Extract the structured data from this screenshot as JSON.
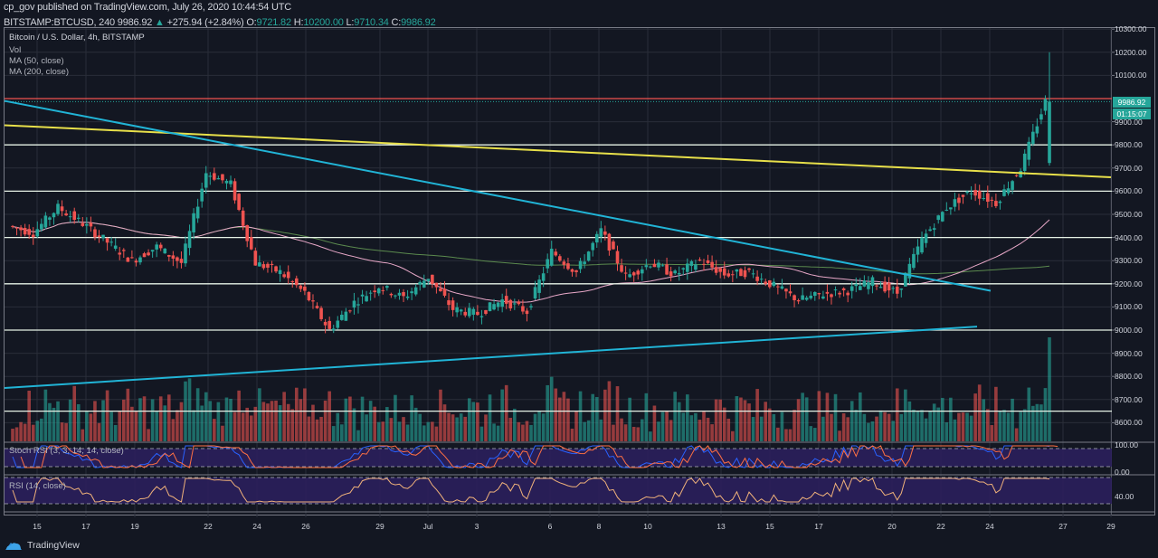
{
  "header": {
    "publisher": "cp_gov published on TradingView.com, July 26, 2020 10:44:54 UTC",
    "symbol": "BITSTAMP:BTCUSD, 240",
    "last": "9986.92",
    "change": "+275.94 (+2.84%)",
    "open_label": "O:",
    "open": "9721.82",
    "high_label": "H:",
    "high": "10200.00",
    "low_label": "L:",
    "low": "9710.34",
    "close_label": "C:",
    "close": "9986.92"
  },
  "legend": {
    "title": "Bitcoin / U.S. Dollar, 4h, BITSTAMP",
    "vol": "Vol",
    "ma50": "MA (50, close)",
    "ma200": "MA (200, close)",
    "stoch": "Stoch RSI (3, 3, 14, 14, close)",
    "rsi": "RSI (14, close)"
  },
  "price_tag": {
    "value": "9986.92",
    "countdown": "01:15:07"
  },
  "price_axis": [
    "10300.00",
    "10200.00",
    "10100.00",
    "9900.00",
    "9800.00",
    "9700.00",
    "9600.00",
    "9500.00",
    "9400.00",
    "9300.00",
    "9200.00",
    "9100.00",
    "9000.00",
    "8900.00",
    "8800.00",
    "8700.00",
    "8600.00"
  ],
  "stoch_axis": [
    "100.00",
    "0.00"
  ],
  "rsi_axis": [
    "40.00"
  ],
  "time_axis": [
    {
      "label": "15",
      "x": 41
    },
    {
      "label": "17",
      "x": 95
    },
    {
      "label": "19",
      "x": 149
    },
    {
      "label": "22",
      "x": 230
    },
    {
      "label": "24",
      "x": 284
    },
    {
      "label": "26",
      "x": 338
    },
    {
      "label": "29",
      "x": 420
    },
    {
      "label": "Jul",
      "x": 473
    },
    {
      "label": "3",
      "x": 527
    },
    {
      "label": "6",
      "x": 608
    },
    {
      "label": "8",
      "x": 662
    },
    {
      "label": "10",
      "x": 716
    },
    {
      "label": "13",
      "x": 797
    },
    {
      "label": "15",
      "x": 851
    },
    {
      "label": "17",
      "x": 905
    },
    {
      "label": "20",
      "x": 986
    },
    {
      "label": "22",
      "x": 1040
    },
    {
      "label": "24",
      "x": 1094
    },
    {
      "label": "27",
      "x": 1175
    },
    {
      "label": "29",
      "x": 1228
    }
  ],
  "branding": {
    "name": "TradingView"
  },
  "colors": {
    "up": "#26a69a",
    "down": "#ef5350",
    "resistance": "#ef5350",
    "yellow_trend": "#e8e04a",
    "cyan_trend": "#21b4d6",
    "ma50": "#e8a8c8",
    "ma200": "#5b8a4e",
    "hline": "#e6f2e6",
    "bg": "#131722"
  },
  "chart_data": {
    "type": "candlestick",
    "title": "Bitcoin / U.S. Dollar, 4h, BITSTAMP",
    "xlabel": "",
    "ylabel": "USD",
    "ylim": [
      8550,
      10300
    ],
    "timeframe": "4h",
    "x_range": [
      "2020-06-14",
      "2020-07-26"
    ],
    "last_candle": {
      "open": 9721.82,
      "high": 10200.0,
      "low": 9710.34,
      "close": 9986.92
    },
    "horizontal_levels": [
      10000,
      9800,
      9600,
      9400,
      9200,
      9000,
      8650
    ],
    "resistance_level": 10000,
    "trendlines": [
      {
        "name": "yellow-descending",
        "from": [
          0,
          9885
        ],
        "to": [
          1228,
          9660
        ]
      },
      {
        "name": "cyan-descending",
        "from": [
          0,
          9990
        ],
        "to": [
          1095,
          9170
        ]
      },
      {
        "name": "cyan-ascending",
        "from": [
          0,
          8750
        ],
        "to": [
          1080,
          9015
        ]
      }
    ],
    "daily_closes_approx": [
      {
        "date": "Jun 14",
        "close": 9450
      },
      {
        "date": "Jun 15",
        "close": 9420
      },
      {
        "date": "Jun 16",
        "close": 9530
      },
      {
        "date": "Jun 17",
        "close": 9460
      },
      {
        "date": "Jun 18",
        "close": 9380
      },
      {
        "date": "Jun 19",
        "close": 9300
      },
      {
        "date": "Jun 20",
        "close": 9360
      },
      {
        "date": "Jun 21",
        "close": 9290
      },
      {
        "date": "Jun 22",
        "close": 9680
      },
      {
        "date": "Jun 23",
        "close": 9630
      },
      {
        "date": "Jun 24",
        "close": 9290
      },
      {
        "date": "Jun 25",
        "close": 9250
      },
      {
        "date": "Jun 26",
        "close": 9160
      },
      {
        "date": "Jun 27",
        "close": 9000
      },
      {
        "date": "Jun 28",
        "close": 9120
      },
      {
        "date": "Jun 29",
        "close": 9190
      },
      {
        "date": "Jun 30",
        "close": 9140
      },
      {
        "date": "Jul 1",
        "close": 9230
      },
      {
        "date": "Jul 2",
        "close": 9090
      },
      {
        "date": "Jul 3",
        "close": 9070
      },
      {
        "date": "Jul 4",
        "close": 9130
      },
      {
        "date": "Jul 5",
        "close": 9080
      },
      {
        "date": "Jul 6",
        "close": 9340
      },
      {
        "date": "Jul 7",
        "close": 9250
      },
      {
        "date": "Jul 8",
        "close": 9430
      },
      {
        "date": "Jul 9",
        "close": 9230
      },
      {
        "date": "Jul 10",
        "close": 9290
      },
      {
        "date": "Jul 11",
        "close": 9240
      },
      {
        "date": "Jul 12",
        "close": 9300
      },
      {
        "date": "Jul 13",
        "close": 9240
      },
      {
        "date": "Jul 14",
        "close": 9250
      },
      {
        "date": "Jul 15",
        "close": 9190
      },
      {
        "date": "Jul 16",
        "close": 9130
      },
      {
        "date": "Jul 17",
        "close": 9155
      },
      {
        "date": "Jul 18",
        "close": 9170
      },
      {
        "date": "Jul 19",
        "close": 9210
      },
      {
        "date": "Jul 20",
        "close": 9160
      },
      {
        "date": "Jul 21",
        "close": 9390
      },
      {
        "date": "Jul 22",
        "close": 9530
      },
      {
        "date": "Jul 23",
        "close": 9600
      },
      {
        "date": "Jul 24",
        "close": 9550
      },
      {
        "date": "Jul 25",
        "close": 9700
      },
      {
        "date": "Jul 26",
        "close": 9987
      }
    ]
  }
}
